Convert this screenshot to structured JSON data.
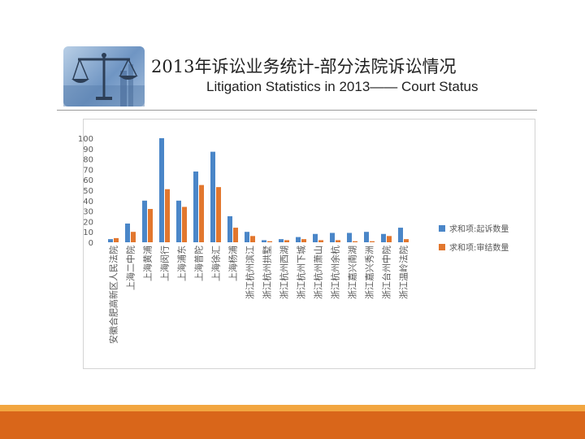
{
  "header": {
    "title_zh": "2013年诉讼业务统计-部分法院诉讼情况",
    "title_en": "Litigation Statistics in 2013—— Court Status"
  },
  "logo": {
    "icon": "scales-of-justice-icon"
  },
  "colors": {
    "series1": "#4a86c8",
    "series2": "#e2772e",
    "accent_top": "#f2a640",
    "accent_bottom": "#d9661a"
  },
  "chart_data": {
    "type": "bar",
    "categories": [
      "安徽合肥高新区人民法院",
      "上海二中院",
      "上海黄浦",
      "上海闵行",
      "上海浦东",
      "上海普陀",
      "上海徐汇",
      "上海杨浦",
      "浙江杭州滨江",
      "浙江杭州拱墅",
      "浙江杭州西湖",
      "浙江杭州下城",
      "浙江杭州萧山",
      "浙江杭州余杭",
      "浙江嘉兴南湖",
      "浙江嘉兴秀洲",
      "浙江台州中院",
      "浙江温岭法院"
    ],
    "series": [
      {
        "name": "求和项:起诉数量",
        "values": [
          3,
          18,
          40,
          100,
          40,
          68,
          87,
          25,
          10,
          2,
          3,
          5,
          8,
          9,
          9,
          10,
          8,
          14
        ]
      },
      {
        "name": "求和项:审结数量",
        "values": [
          4,
          10,
          32,
          51,
          34,
          55,
          53,
          14,
          6,
          1,
          2,
          3,
          2,
          2,
          1,
          1,
          6,
          3
        ]
      }
    ],
    "yticks": [
      "0",
      "10",
      "20",
      "30",
      "40",
      "50",
      "60",
      "70",
      "80",
      "90",
      "100"
    ],
    "ylim": [
      0,
      100
    ],
    "grid": false,
    "legend": "right"
  }
}
